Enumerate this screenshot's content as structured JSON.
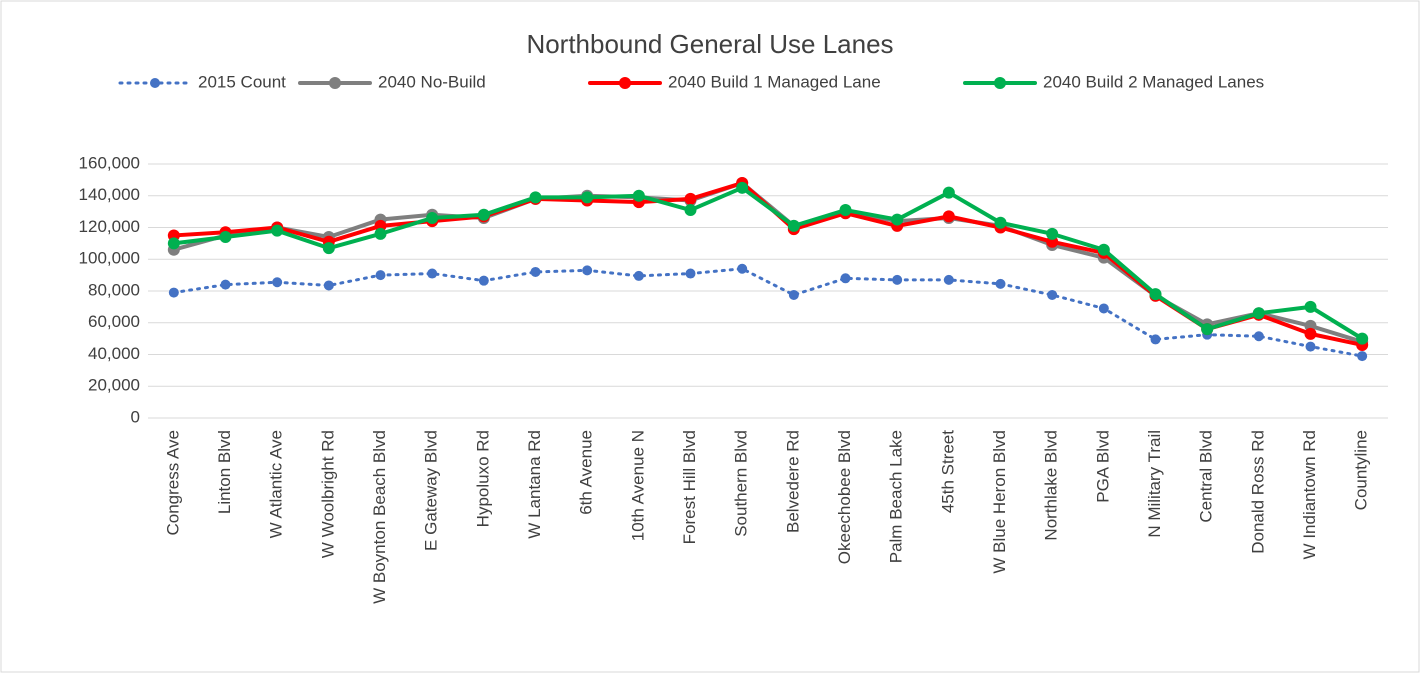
{
  "chart_data": {
    "type": "line",
    "title": "Northbound General Use Lanes",
    "categories": [
      "Congress Ave",
      "Linton Blvd",
      "W Atlantic Ave",
      "W Woolbright Rd",
      "W Boynton Beach Blvd",
      "E Gateway Blvd",
      "Hypoluxo Rd",
      "W Lantana Rd",
      "6th Avenue",
      "10th Avenue N",
      "Forest Hill Blvd",
      "Southern Blvd",
      "Belvedere Rd",
      "Okeechobee Blvd",
      "Palm Beach Lake",
      "45th Street",
      "W Blue Heron Blvd",
      "Northlake Blvd",
      "PGA Blvd",
      "N Military Trail",
      "Central Blvd",
      "Donald Ross Rd",
      "W Indiantown Rd",
      "Countyline"
    ],
    "series": [
      {
        "name": "2015 Count",
        "color": "#4472c4",
        "dash": "dotted",
        "values": [
          79000,
          84000,
          85500,
          83500,
          90000,
          91000,
          86500,
          92000,
          93000,
          89500,
          91000,
          94000,
          77500,
          88000,
          87000,
          87000,
          84500,
          77500,
          69000,
          49500,
          52500,
          51500,
          45000,
          39000
        ]
      },
      {
        "name": "2040 No-Build",
        "color": "#7f7f7f",
        "values": [
          106000,
          115000,
          120000,
          114000,
          125000,
          128000,
          126000,
          138000,
          140000,
          139000,
          137000,
          148000,
          121000,
          130000,
          124000,
          126000,
          121000,
          109000,
          101000,
          77000,
          59000,
          66000,
          58000,
          48000
        ]
      },
      {
        "name": "2040 Build 1 Managed Lane",
        "color": "#ff0000",
        "values": [
          115000,
          117000,
          120000,
          111000,
          121000,
          124000,
          127000,
          138000,
          137000,
          136000,
          138000,
          148000,
          119000,
          129000,
          121000,
          127000,
          120000,
          111000,
          104000,
          77000,
          56000,
          65000,
          53000,
          46000
        ]
      },
      {
        "name": "2040 Build 2 Managed Lanes",
        "color": "#00b050",
        "values": [
          110000,
          114000,
          118000,
          107000,
          116000,
          126000,
          128000,
          139000,
          139000,
          140000,
          131000,
          145000,
          121000,
          131000,
          125000,
          142000,
          123000,
          116000,
          106000,
          78000,
          56000,
          66000,
          70000,
          50000
        ]
      }
    ],
    "ylim": [
      0,
      160000
    ],
    "yticks": [
      0,
      {
        "value": 20000,
        "label": "20,000"
      },
      {
        "value": 40000,
        "label": "40,000"
      },
      {
        "value": 60000,
        "label": "60,000"
      },
      {
        "value": 80000,
        "label": "80,000"
      },
      {
        "value": 100000,
        "label": "100,000"
      },
      {
        "value": 120000,
        "label": "120,000"
      },
      {
        "value": 140000,
        "label": "140,000"
      },
      {
        "value": 160000,
        "label": "160,000"
      }
    ],
    "grid": true,
    "legend": "top"
  }
}
